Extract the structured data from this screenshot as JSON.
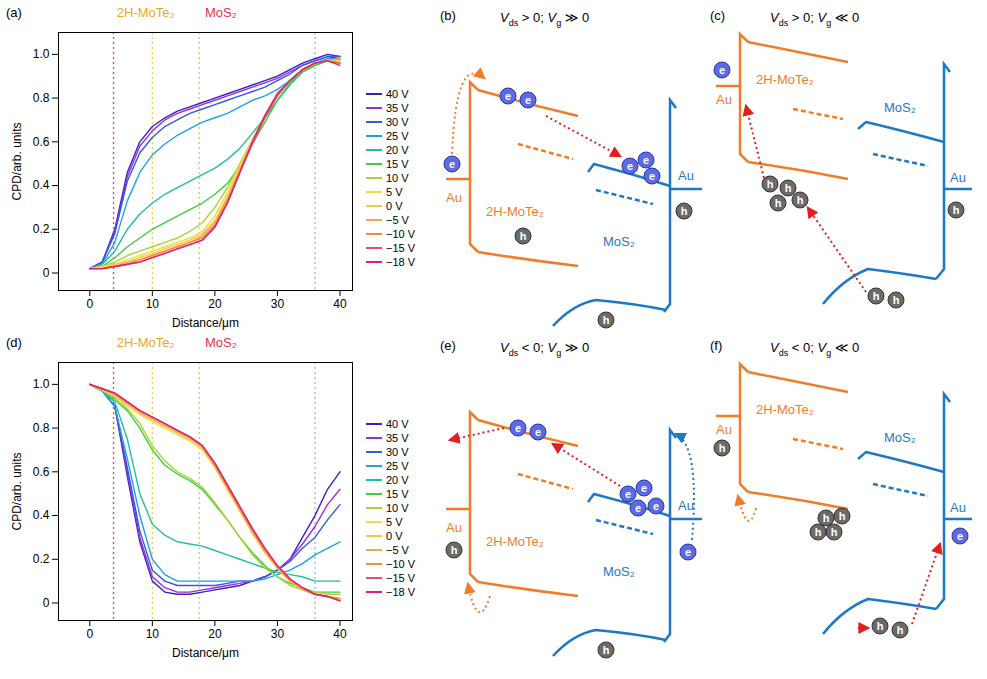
{
  "chart_data": [
    {
      "panel": "(a)",
      "type": "line",
      "header_labels": [
        {
          "text": "2H-MoTe₂",
          "color": "#e8a92a"
        },
        {
          "text": "MoS₂",
          "color": "#e8334a"
        }
      ],
      "x_label": "Distance/μm",
      "y_label": "CPD/arb. units",
      "xlim": [
        -5,
        42
      ],
      "ylim": [
        -0.08,
        1.1
      ],
      "xticks": [
        0,
        10,
        20,
        30,
        40
      ],
      "yticks": [
        0,
        0.2,
        0.4,
        0.6,
        0.8,
        {
          "value": 1,
          "label": "1.0"
        }
      ],
      "grid": false,
      "legend": "right",
      "vlines": [
        {
          "x": 3.8,
          "color": "#e8463c"
        },
        {
          "x": 10,
          "color": "#f2c94c"
        },
        {
          "x": 17.5,
          "color": "#c9d44a"
        },
        {
          "x": 36,
          "color": "#8fb4e8"
        }
      ],
      "x": [
        0,
        2,
        4,
        6,
        8,
        10,
        12,
        14,
        16,
        18,
        20,
        22,
        24,
        26,
        28,
        30,
        32,
        34,
        36,
        38,
        40
      ],
      "series": [
        {
          "name": "40 V",
          "color": "#3b1fc4",
          "values": [
            0.02,
            0.05,
            0.2,
            0.46,
            0.6,
            0.67,
            0.71,
            0.74,
            0.76,
            0.78,
            0.8,
            0.82,
            0.84,
            0.86,
            0.88,
            0.9,
            0.93,
            0.96,
            0.98,
            1.0,
            0.99
          ]
        },
        {
          "name": "35 V",
          "color": "#9b2fd6",
          "values": [
            0.02,
            0.05,
            0.19,
            0.44,
            0.58,
            0.65,
            0.7,
            0.73,
            0.75,
            0.77,
            0.79,
            0.81,
            0.83,
            0.85,
            0.87,
            0.89,
            0.92,
            0.95,
            0.97,
            0.99,
            0.99
          ]
        },
        {
          "name": "30 V",
          "color": "#2f5be0",
          "values": [
            0.02,
            0.05,
            0.18,
            0.42,
            0.55,
            0.62,
            0.67,
            0.7,
            0.73,
            0.75,
            0.77,
            0.79,
            0.81,
            0.83,
            0.85,
            0.88,
            0.91,
            0.95,
            0.97,
            0.99,
            0.98
          ]
        },
        {
          "name": "25 V",
          "color": "#1fa0e8",
          "values": [
            0.02,
            0.04,
            0.14,
            0.33,
            0.46,
            0.54,
            0.59,
            0.63,
            0.66,
            0.69,
            0.71,
            0.73,
            0.76,
            0.79,
            0.81,
            0.84,
            0.88,
            0.93,
            0.96,
            0.98,
            0.98
          ]
        },
        {
          "name": "20 V",
          "color": "#22c09a",
          "values": [
            0.02,
            0.04,
            0.1,
            0.2,
            0.27,
            0.32,
            0.36,
            0.39,
            0.42,
            0.45,
            0.48,
            0.52,
            0.57,
            0.64,
            0.71,
            0.79,
            0.86,
            0.92,
            0.95,
            0.97,
            0.98
          ]
        },
        {
          "name": "15 V",
          "color": "#3fcc3f",
          "values": [
            0.02,
            0.03,
            0.07,
            0.12,
            0.16,
            0.2,
            0.23,
            0.26,
            0.29,
            0.32,
            0.36,
            0.41,
            0.49,
            0.59,
            0.69,
            0.79,
            0.87,
            0.92,
            0.95,
            0.97,
            0.98
          ]
        },
        {
          "name": "10 V",
          "color": "#a8d43a",
          "values": [
            0.02,
            0.03,
            0.05,
            0.08,
            0.1,
            0.12,
            0.14,
            0.16,
            0.19,
            0.23,
            0.3,
            0.39,
            0.5,
            0.61,
            0.72,
            0.82,
            0.88,
            0.93,
            0.96,
            0.97,
            0.98
          ]
        },
        {
          "name": "5 V",
          "color": "#f0dc3a",
          "values": [
            0.02,
            0.03,
            0.04,
            0.06,
            0.08,
            0.1,
            0.12,
            0.14,
            0.16,
            0.19,
            0.26,
            0.37,
            0.49,
            0.61,
            0.72,
            0.82,
            0.88,
            0.93,
            0.96,
            0.97,
            0.97
          ]
        },
        {
          "name": "0 V",
          "color": "#f5c842",
          "values": [
            0.02,
            0.02,
            0.04,
            0.05,
            0.07,
            0.09,
            0.11,
            0.13,
            0.15,
            0.18,
            0.24,
            0.35,
            0.48,
            0.6,
            0.72,
            0.82,
            0.88,
            0.93,
            0.96,
            0.97,
            0.97
          ]
        },
        {
          "name": "−5 V",
          "color": "#f3a94a",
          "values": [
            0.02,
            0.02,
            0.03,
            0.05,
            0.06,
            0.08,
            0.1,
            0.12,
            0.14,
            0.17,
            0.23,
            0.34,
            0.47,
            0.6,
            0.72,
            0.82,
            0.88,
            0.93,
            0.96,
            0.97,
            0.96
          ]
        },
        {
          "name": "−10 V",
          "color": "#f08c3c",
          "values": [
            0.02,
            0.02,
            0.03,
            0.04,
            0.06,
            0.08,
            0.1,
            0.12,
            0.14,
            0.16,
            0.22,
            0.33,
            0.47,
            0.6,
            0.72,
            0.82,
            0.88,
            0.93,
            0.96,
            0.97,
            0.96
          ]
        },
        {
          "name": "−15 V",
          "color": "#ea4d6c",
          "values": [
            0.02,
            0.02,
            0.03,
            0.04,
            0.05,
            0.07,
            0.09,
            0.11,
            0.13,
            0.15,
            0.21,
            0.32,
            0.46,
            0.59,
            0.71,
            0.81,
            0.88,
            0.93,
            0.96,
            0.97,
            0.96
          ]
        },
        {
          "name": "−18 V",
          "color": "#e0207a",
          "values": [
            0.02,
            0.02,
            0.03,
            0.04,
            0.05,
            0.07,
            0.09,
            0.11,
            0.13,
            0.15,
            0.21,
            0.32,
            0.46,
            0.6,
            0.72,
            0.82,
            0.88,
            0.93,
            0.96,
            0.97,
            0.95
          ]
        }
      ]
    },
    {
      "panel": "(d)",
      "type": "line",
      "header_labels": [
        {
          "text": "2H-MoTe₂",
          "color": "#e8a92a"
        },
        {
          "text": "MoS₂",
          "color": "#e8334a"
        }
      ],
      "x_label": "Distance/μm",
      "y_label": "CPD/arb. units",
      "xlim": [
        -5,
        42
      ],
      "ylim": [
        -0.08,
        1.1
      ],
      "xticks": [
        0,
        10,
        20,
        30,
        40
      ],
      "yticks": [
        0,
        0.2,
        0.4,
        0.6,
        0.8,
        {
          "value": 1,
          "label": "1.0"
        }
      ],
      "grid": false,
      "legend": "right",
      "vlines": [
        {
          "x": 3.8,
          "color": "#e8463c"
        },
        {
          "x": 10,
          "color": "#f2c94c"
        },
        {
          "x": 17.5,
          "color": "#c9d44a"
        },
        {
          "x": 36,
          "color": "#8fb4e8"
        }
      ],
      "x": [
        0,
        2,
        4,
        6,
        8,
        10,
        12,
        14,
        16,
        18,
        20,
        22,
        24,
        26,
        28,
        30,
        32,
        34,
        36,
        38,
        40
      ],
      "series": [
        {
          "name": "40 V",
          "color": "#3b1fc4",
          "values": [
            1.0,
            0.97,
            0.9,
            0.58,
            0.28,
            0.1,
            0.05,
            0.04,
            0.04,
            0.05,
            0.06,
            0.07,
            0.08,
            0.1,
            0.12,
            0.15,
            0.2,
            0.3,
            0.4,
            0.52,
            0.6
          ]
        },
        {
          "name": "35 V",
          "color": "#9b2fd6",
          "values": [
            1.0,
            0.97,
            0.9,
            0.6,
            0.3,
            0.12,
            0.07,
            0.05,
            0.05,
            0.06,
            0.07,
            0.08,
            0.09,
            0.1,
            0.12,
            0.15,
            0.2,
            0.27,
            0.35,
            0.45,
            0.52
          ]
        },
        {
          "name": "30 V",
          "color": "#2f5be0",
          "values": [
            1.0,
            0.97,
            0.9,
            0.62,
            0.33,
            0.15,
            0.1,
            0.08,
            0.08,
            0.08,
            0.08,
            0.09,
            0.1,
            0.1,
            0.12,
            0.15,
            0.19,
            0.25,
            0.3,
            0.38,
            0.45
          ]
        },
        {
          "name": "25 V",
          "color": "#1fa0e8",
          "values": [
            1.0,
            0.97,
            0.9,
            0.66,
            0.4,
            0.2,
            0.13,
            0.1,
            0.1,
            0.1,
            0.1,
            0.1,
            0.1,
            0.1,
            0.11,
            0.13,
            0.15,
            0.18,
            0.22,
            0.25,
            0.28
          ]
        },
        {
          "name": "20 V",
          "color": "#22c09a",
          "values": [
            1.0,
            0.97,
            0.92,
            0.75,
            0.5,
            0.36,
            0.31,
            0.28,
            0.27,
            0.26,
            0.24,
            0.22,
            0.2,
            0.18,
            0.16,
            0.14,
            0.13,
            0.12,
            0.1,
            0.1,
            0.1
          ]
        },
        {
          "name": "15 V",
          "color": "#3fcc3f",
          "values": [
            1.0,
            0.97,
            0.93,
            0.88,
            0.8,
            0.7,
            0.63,
            0.59,
            0.56,
            0.52,
            0.45,
            0.38,
            0.3,
            0.23,
            0.17,
            0.12,
            0.09,
            0.07,
            0.05,
            0.05,
            0.05
          ]
        },
        {
          "name": "10 V",
          "color": "#a8d43a",
          "values": [
            1.0,
            0.97,
            0.94,
            0.89,
            0.82,
            0.72,
            0.65,
            0.6,
            0.57,
            0.53,
            0.46,
            0.38,
            0.3,
            0.22,
            0.16,
            0.12,
            0.08,
            0.06,
            0.05,
            0.04,
            0.04
          ]
        },
        {
          "name": "5 V",
          "color": "#f0dc3a",
          "values": [
            1.0,
            0.98,
            0.95,
            0.9,
            0.86,
            0.83,
            0.8,
            0.77,
            0.74,
            0.7,
            0.62,
            0.52,
            0.42,
            0.32,
            0.23,
            0.16,
            0.1,
            0.06,
            0.04,
            0.03,
            0.02
          ]
        },
        {
          "name": "0 V",
          "color": "#f5c842",
          "values": [
            1.0,
            0.98,
            0.95,
            0.91,
            0.87,
            0.84,
            0.81,
            0.78,
            0.75,
            0.71,
            0.62,
            0.52,
            0.42,
            0.32,
            0.23,
            0.16,
            0.1,
            0.06,
            0.04,
            0.03,
            0.02
          ]
        },
        {
          "name": "−5 V",
          "color": "#f3a94a",
          "values": [
            1.0,
            0.98,
            0.95,
            0.91,
            0.87,
            0.84,
            0.81,
            0.78,
            0.75,
            0.71,
            0.63,
            0.53,
            0.43,
            0.33,
            0.24,
            0.16,
            0.1,
            0.06,
            0.04,
            0.03,
            0.02
          ]
        },
        {
          "name": "−10 V",
          "color": "#f08c3c",
          "values": [
            1.0,
            0.98,
            0.96,
            0.92,
            0.88,
            0.85,
            0.82,
            0.79,
            0.76,
            0.72,
            0.63,
            0.53,
            0.43,
            0.33,
            0.24,
            0.17,
            0.11,
            0.07,
            0.04,
            0.03,
            0.02
          ]
        },
        {
          "name": "−15 V",
          "color": "#ea4d6c",
          "values": [
            1.0,
            0.98,
            0.96,
            0.92,
            0.88,
            0.85,
            0.82,
            0.79,
            0.76,
            0.72,
            0.64,
            0.54,
            0.44,
            0.34,
            0.25,
            0.17,
            0.11,
            0.07,
            0.04,
            0.03,
            0.01
          ]
        },
        {
          "name": "−18 V",
          "color": "#e0207a",
          "values": [
            1.0,
            0.98,
            0.96,
            0.92,
            0.88,
            0.85,
            0.82,
            0.79,
            0.76,
            0.72,
            0.64,
            0.54,
            0.44,
            0.34,
            0.25,
            0.17,
            0.11,
            0.07,
            0.04,
            0.03,
            0.01
          ]
        }
      ]
    }
  ],
  "diagrams": {
    "electron": "e",
    "hole": "h",
    "panels": [
      {
        "panel": "(b)",
        "condition": [
          {
            "symbol": "V",
            "sub": "ds",
            "text": " > 0; "
          },
          {
            "symbol": "V",
            "sub": "g",
            "text": " ≫ 0"
          }
        ],
        "labels": {
          "left_contact": "Au",
          "left_material": "2H-MoTe₂",
          "right_material": "MoS₂",
          "right_contact": "Au"
        }
      },
      {
        "panel": "(c)",
        "condition": [
          {
            "symbol": "V",
            "sub": "ds",
            "text": " > 0; "
          },
          {
            "symbol": "V",
            "sub": "g",
            "text": " ≪ 0"
          }
        ],
        "labels": {
          "left_contact": "Au",
          "left_material": "2H-MoTe₂",
          "right_material": "MoS₂",
          "right_contact": "Au"
        }
      },
      {
        "panel": "(e)",
        "condition": [
          {
            "symbol": "V",
            "sub": "ds",
            "text": " < 0; "
          },
          {
            "symbol": "V",
            "sub": "g",
            "text": " ≫ 0"
          }
        ],
        "labels": {
          "left_contact": "Au",
          "left_material": "2H-MoTe₂",
          "right_material": "MoS₂",
          "right_contact": "Au"
        }
      },
      {
        "panel": "(f)",
        "condition": [
          {
            "symbol": "V",
            "sub": "ds",
            "text": " < 0; "
          },
          {
            "symbol": "V",
            "sub": "g",
            "text": " ≪ 0"
          }
        ],
        "labels": {
          "left_contact": "Au",
          "left_material": "2H-MoTe₂",
          "right_material": "MoS₂",
          "right_contact": "Au"
        }
      }
    ]
  }
}
